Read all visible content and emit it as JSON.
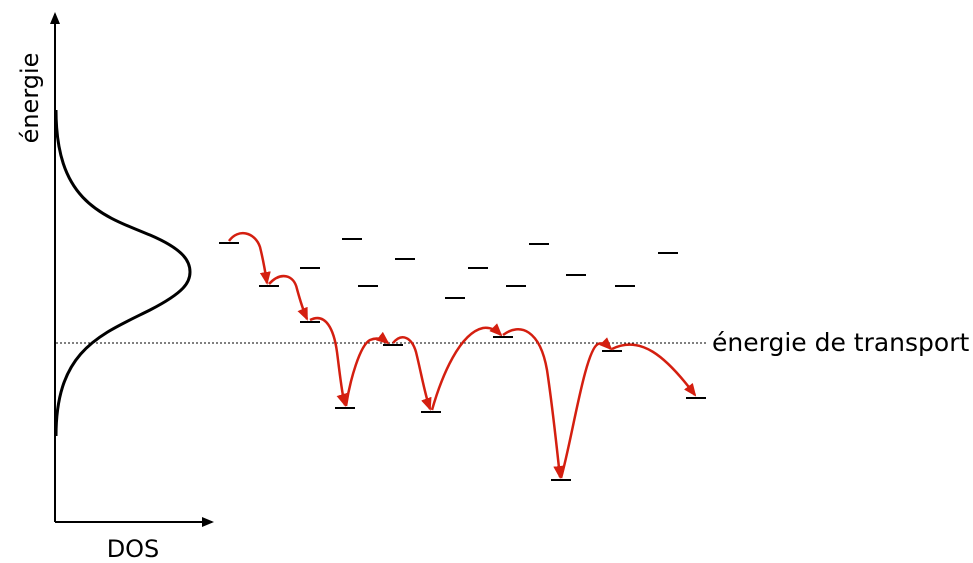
{
  "y_axis_label": "énergie",
  "x_axis_label": "DOS",
  "transport_energy_label": "énergie de transport",
  "colors": {
    "hop_arrow": "#d41f10",
    "axis": "#000000",
    "level": "#000000"
  }
}
